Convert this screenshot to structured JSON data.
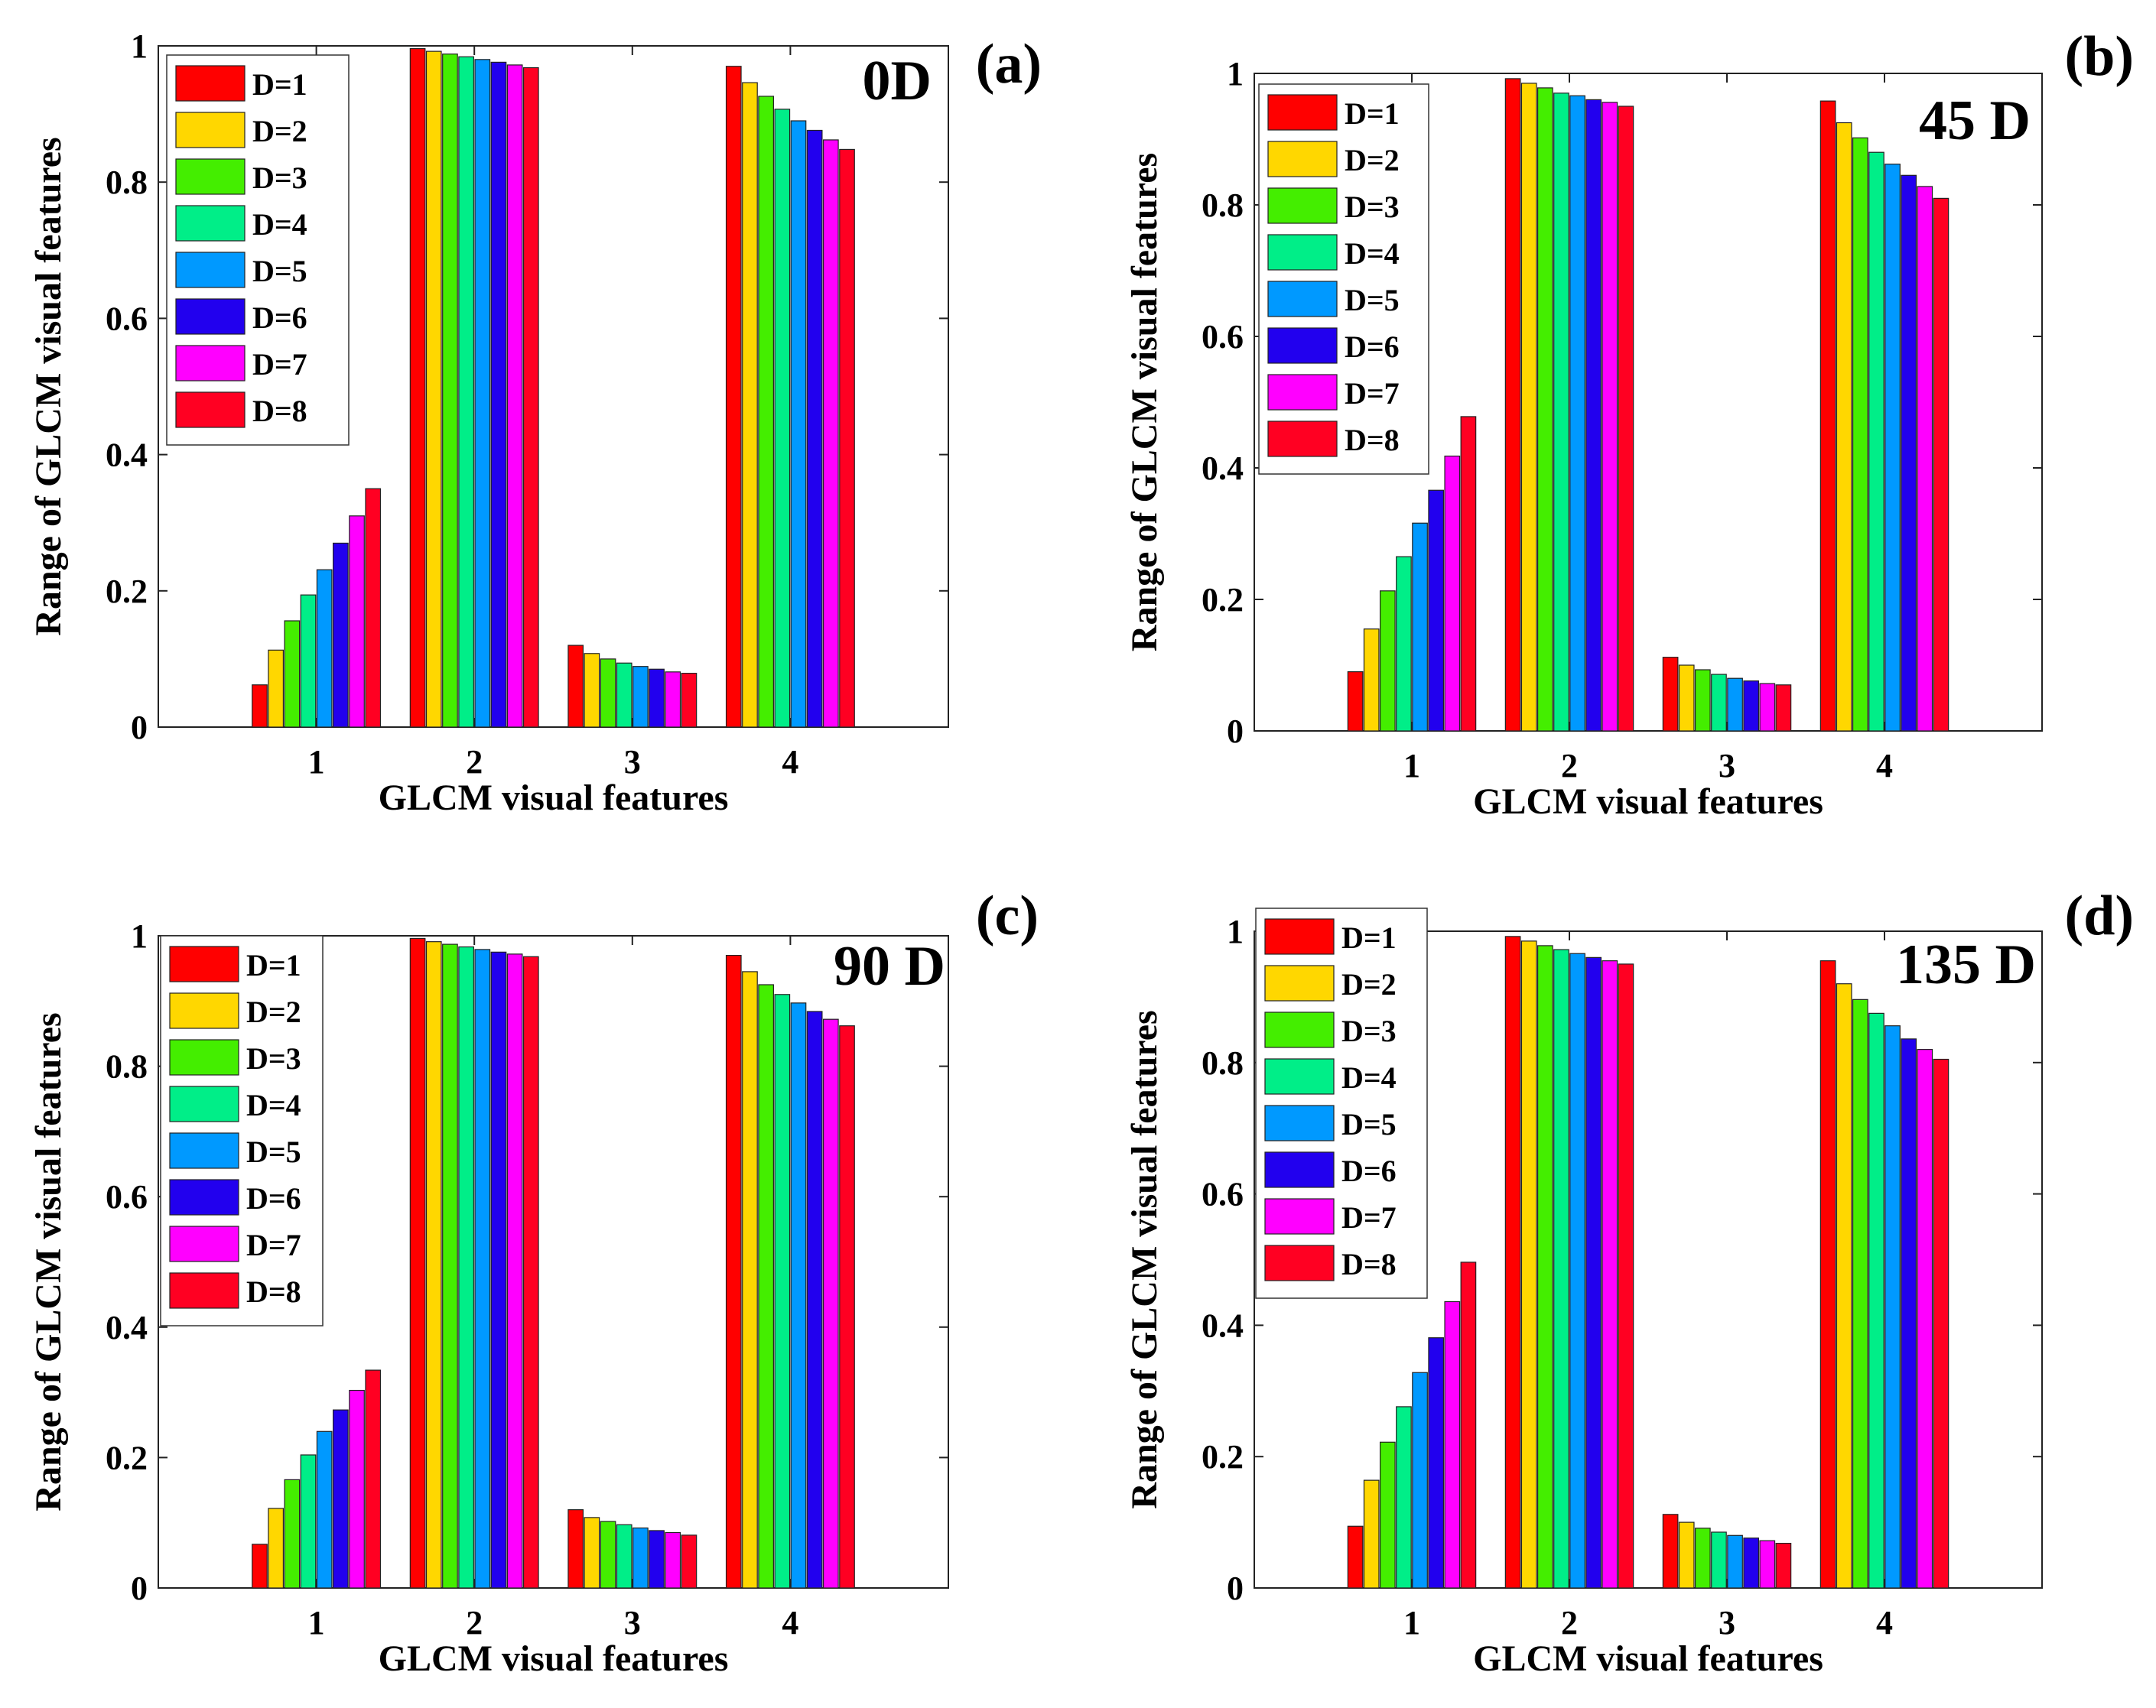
{
  "figure": {
    "colors": [
      "#ff0000",
      "#ffd700",
      "#44ee00",
      "#00ee88",
      "#0099ff",
      "#2200ee",
      "#ff00ff",
      "#ff0022"
    ]
  },
  "chart_data": [
    {
      "type": "bar",
      "panel": "(a)",
      "angle_label": "0D",
      "xlabel": "GLCM visual features",
      "ylabel": "Range of GLCM visual features",
      "categories": [
        "1",
        "2",
        "3",
        "4"
      ],
      "ylim": [
        0,
        1
      ],
      "yticks": [
        "0",
        "0.2",
        "0.4",
        "0.6",
        "0.8",
        "1"
      ],
      "legend": "top-left",
      "series": [
        {
          "name": "D=1",
          "values": [
            0.062,
            0.996,
            0.12,
            0.97
          ]
        },
        {
          "name": "D=2",
          "values": [
            0.113,
            0.992,
            0.108,
            0.946
          ]
        },
        {
          "name": "D=3",
          "values": [
            0.156,
            0.988,
            0.1,
            0.926
          ]
        },
        {
          "name": "D=4",
          "values": [
            0.194,
            0.984,
            0.094,
            0.907
          ]
        },
        {
          "name": "D=5",
          "values": [
            0.231,
            0.98,
            0.089,
            0.89
          ]
        },
        {
          "name": "D=6",
          "values": [
            0.27,
            0.976,
            0.085,
            0.876
          ]
        },
        {
          "name": "D=7",
          "values": [
            0.31,
            0.972,
            0.081,
            0.862
          ]
        },
        {
          "name": "D=8",
          "values": [
            0.35,
            0.968,
            0.079,
            0.848
          ]
        }
      ]
    },
    {
      "type": "bar",
      "panel": "(b)",
      "angle_label": "45 D",
      "xlabel": "GLCM visual features",
      "ylabel": "Range of GLCM visual features",
      "categories": [
        "1",
        "2",
        "3",
        "4"
      ],
      "ylim": [
        0,
        1
      ],
      "yticks": [
        "0",
        "0.2",
        "0.4",
        "0.6",
        "0.8",
        "1"
      ],
      "legend": "top-left",
      "series": [
        {
          "name": "D=1",
          "values": [
            0.09,
            0.992,
            0.112,
            0.958
          ]
        },
        {
          "name": "D=2",
          "values": [
            0.155,
            0.985,
            0.1,
            0.925
          ]
        },
        {
          "name": "D=3",
          "values": [
            0.213,
            0.978,
            0.093,
            0.902
          ]
        },
        {
          "name": "D=4",
          "values": [
            0.265,
            0.97,
            0.086,
            0.88
          ]
        },
        {
          "name": "D=5",
          "values": [
            0.316,
            0.966,
            0.08,
            0.862
          ]
        },
        {
          "name": "D=6",
          "values": [
            0.366,
            0.96,
            0.076,
            0.845
          ]
        },
        {
          "name": "D=7",
          "values": [
            0.418,
            0.956,
            0.072,
            0.828
          ]
        },
        {
          "name": "D=8",
          "values": [
            0.478,
            0.95,
            0.07,
            0.81
          ]
        }
      ]
    },
    {
      "type": "bar",
      "panel": "(c)",
      "angle_label": "90 D",
      "xlabel": "GLCM visual features",
      "ylabel": "Range of GLCM visual features",
      "categories": [
        "1",
        "2",
        "3",
        "4"
      ],
      "ylim": [
        0,
        1
      ],
      "yticks": [
        "0",
        "0.2",
        "0.4",
        "0.6",
        "0.8",
        "1"
      ],
      "legend": "top-left",
      "series": [
        {
          "name": "D=1",
          "values": [
            0.067,
            0.996,
            0.12,
            0.97
          ]
        },
        {
          "name": "D=2",
          "values": [
            0.122,
            0.991,
            0.108,
            0.945
          ]
        },
        {
          "name": "D=3",
          "values": [
            0.166,
            0.987,
            0.102,
            0.925
          ]
        },
        {
          "name": "D=4",
          "values": [
            0.204,
            0.983,
            0.097,
            0.91
          ]
        },
        {
          "name": "D=5",
          "values": [
            0.24,
            0.979,
            0.092,
            0.897
          ]
        },
        {
          "name": "D=6",
          "values": [
            0.273,
            0.975,
            0.088,
            0.884
          ]
        },
        {
          "name": "D=7",
          "values": [
            0.303,
            0.972,
            0.085,
            0.872
          ]
        },
        {
          "name": "D=8",
          "values": [
            0.334,
            0.968,
            0.081,
            0.862
          ]
        }
      ]
    },
    {
      "type": "bar",
      "panel": "(d)",
      "angle_label": "135 D",
      "xlabel": "GLCM visual features",
      "ylabel": "Range of GLCM visual features",
      "categories": [
        "1",
        "2",
        "3",
        "4"
      ],
      "ylim": [
        0,
        1
      ],
      "yticks": [
        "0",
        "0.2",
        "0.4",
        "0.6",
        "0.8",
        "1"
      ],
      "legend": "top-left",
      "series": [
        {
          "name": "D=1",
          "values": [
            0.094,
            0.992,
            0.112,
            0.955
          ]
        },
        {
          "name": "D=2",
          "values": [
            0.164,
            0.985,
            0.1,
            0.92
          ]
        },
        {
          "name": "D=3",
          "values": [
            0.222,
            0.978,
            0.091,
            0.896
          ]
        },
        {
          "name": "D=4",
          "values": [
            0.276,
            0.972,
            0.085,
            0.875
          ]
        },
        {
          "name": "D=5",
          "values": [
            0.328,
            0.966,
            0.08,
            0.856
          ]
        },
        {
          "name": "D=6",
          "values": [
            0.381,
            0.96,
            0.076,
            0.836
          ]
        },
        {
          "name": "D=7",
          "values": [
            0.436,
            0.955,
            0.072,
            0.82
          ]
        },
        {
          "name": "D=8",
          "values": [
            0.496,
            0.95,
            0.068,
            0.805
          ]
        }
      ]
    }
  ]
}
